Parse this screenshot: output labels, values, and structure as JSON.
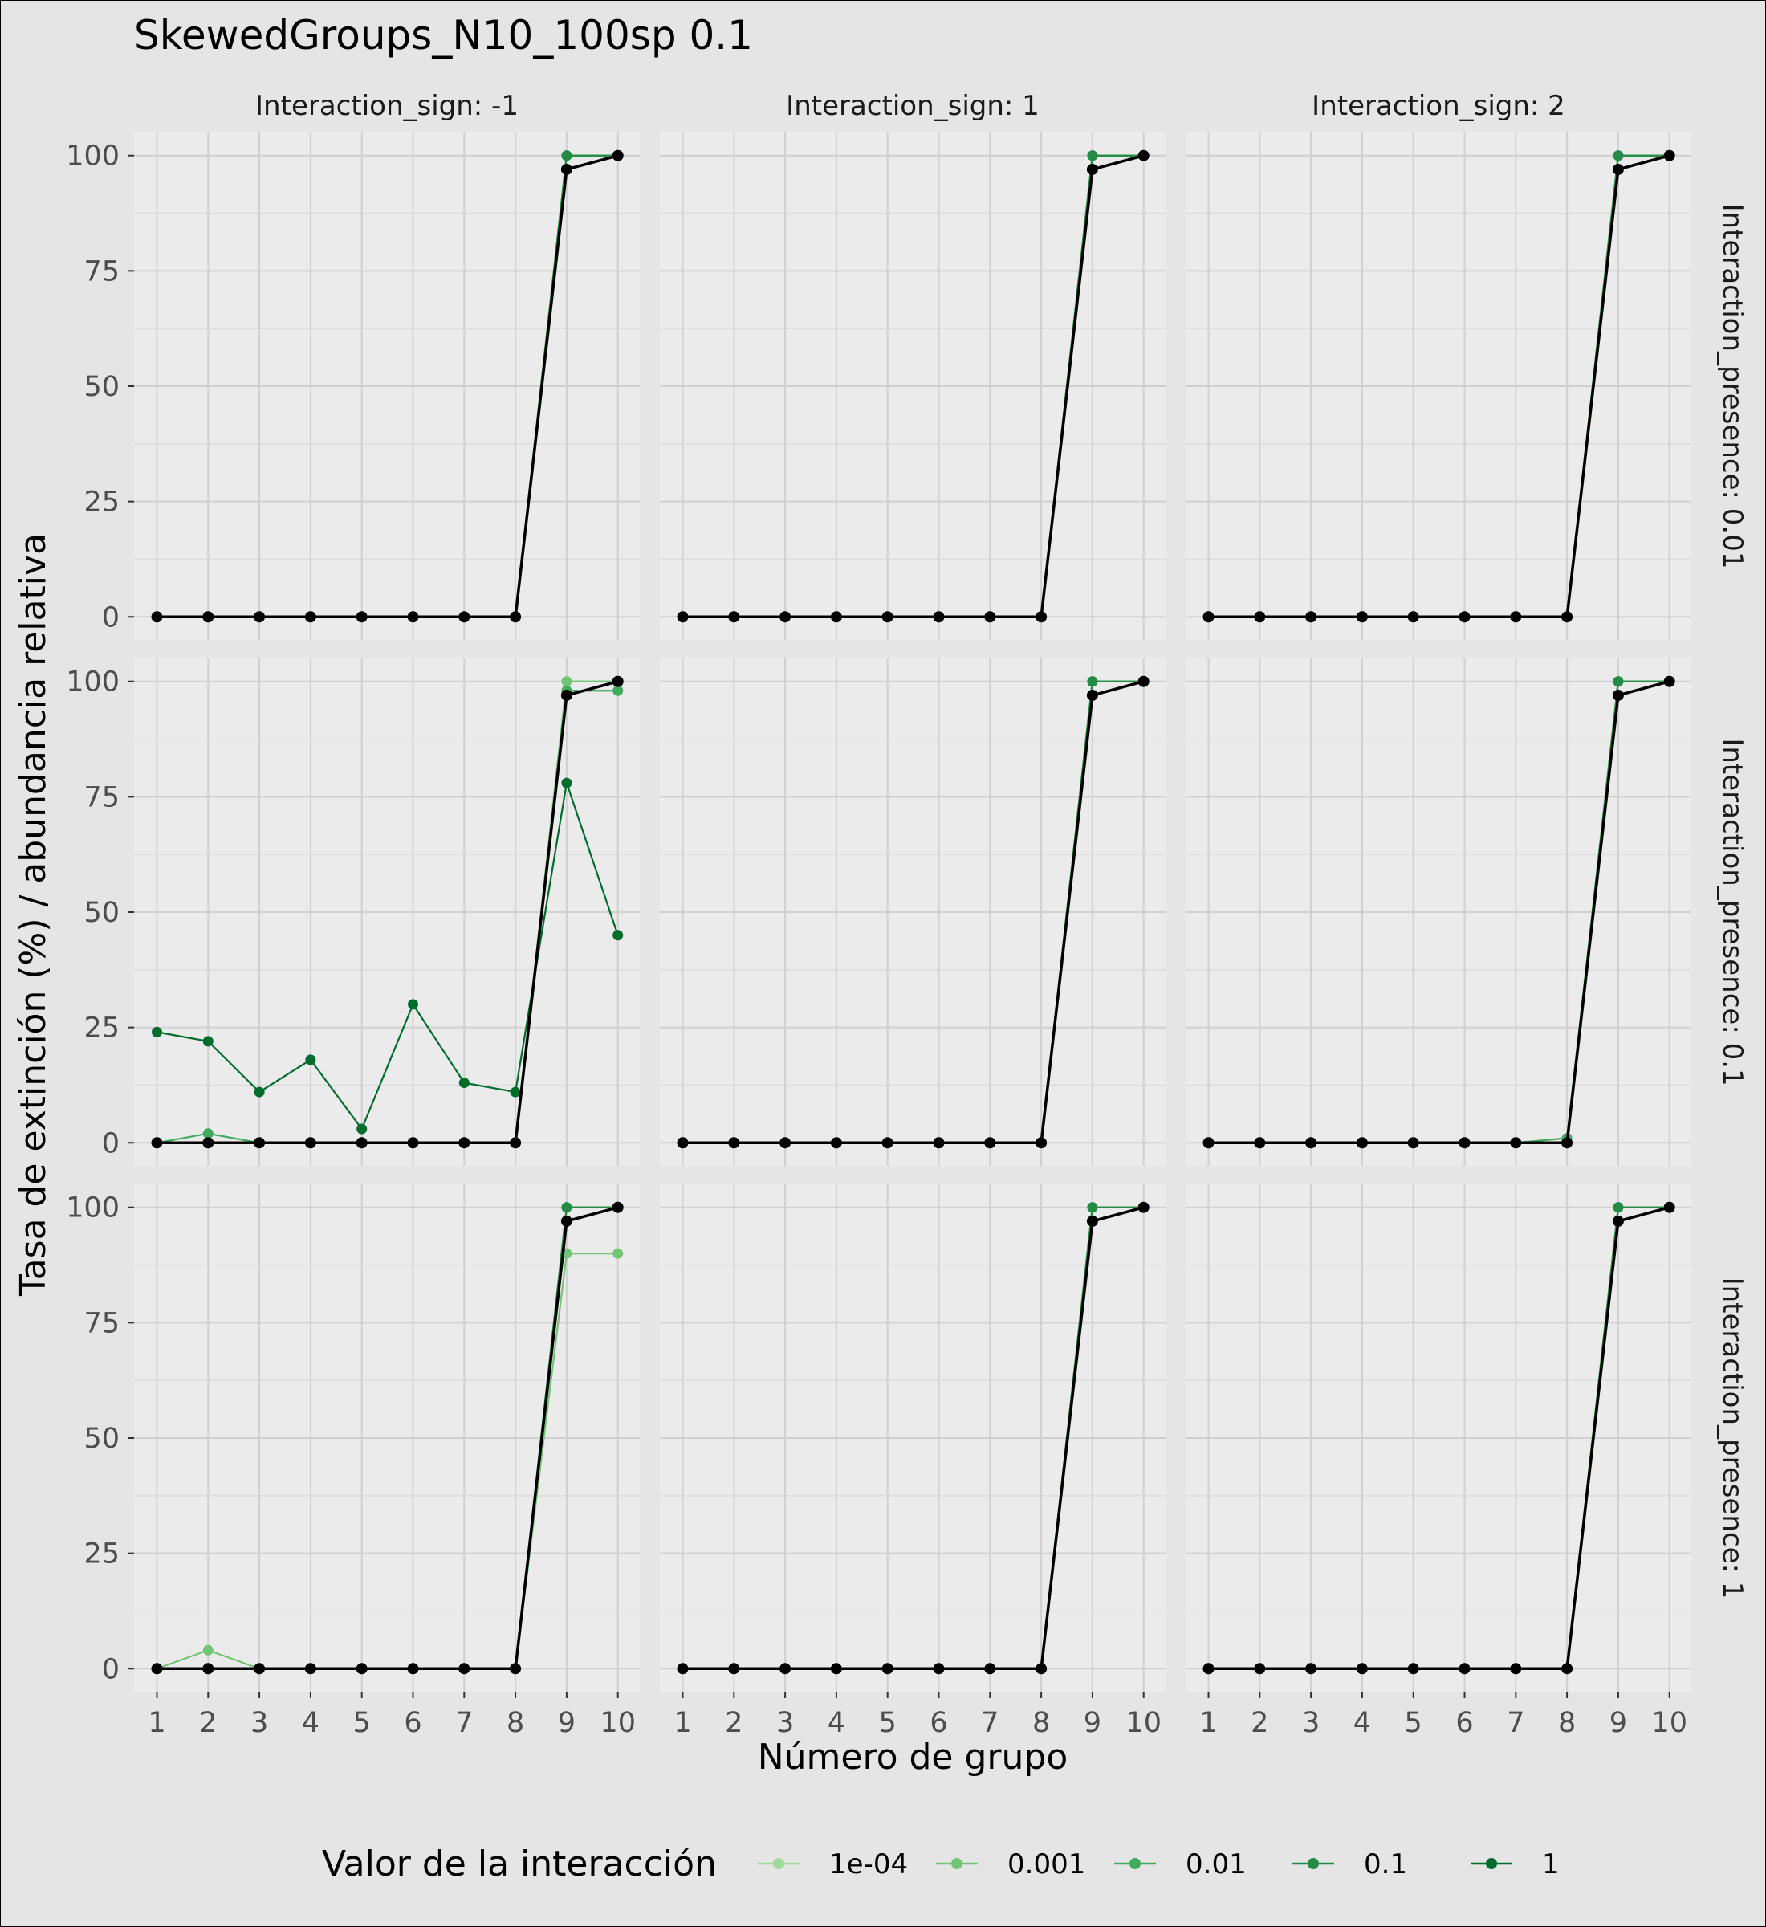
{
  "chart_data": {
    "type": "line",
    "title": "SkewedGroups_N10_100sp 0.1",
    "xlabel": "Número de grupo",
    "ylabel": "Tasa de extinción (%) / abundancia relativa",
    "x": [
      1,
      2,
      3,
      4,
      5,
      6,
      7,
      8,
      9,
      10
    ],
    "x_ticks": [
      "1",
      "2",
      "3",
      "4",
      "5",
      "6",
      "7",
      "8",
      "9",
      "10"
    ],
    "y_ticks": [
      "0",
      "25",
      "50",
      "75",
      "100"
    ],
    "ylim": [
      -5,
      105
    ],
    "facet_cols": [
      "Interaction_sign: -1",
      "Interaction_sign: 1",
      "Interaction_sign: 2"
    ],
    "facet_rows": [
      "Interaction_presence: 0.01",
      "Interaction_presence: 0.1",
      "Interaction_presence: 1"
    ],
    "legend": {
      "title": "Valor de la interacción",
      "entries": [
        "1e-04",
        "0.001",
        "0.01",
        "0.1",
        "1"
      ],
      "colors": [
        "#a1d99b",
        "#74c476",
        "#41ab5d",
        "#238b45",
        "#006d2c"
      ],
      "position": "bottom"
    },
    "grid": true,
    "panels": [
      [
        {
          "series": [
            {
              "name": "1e-04",
              "values": [
                0,
                0,
                0,
                0,
                0,
                0,
                0,
                0,
                100,
                100
              ]
            },
            {
              "name": "0.001",
              "values": [
                0,
                0,
                0,
                0,
                0,
                0,
                0,
                0,
                100,
                100
              ]
            },
            {
              "name": "0.01",
              "values": [
                0,
                0,
                0,
                0,
                0,
                0,
                0,
                0,
                100,
                100
              ]
            },
            {
              "name": "0.1",
              "values": [
                0,
                0,
                0,
                0,
                0,
                0,
                0,
                0,
                100,
                100
              ]
            },
            {
              "name": "1",
              "values": [
                0,
                0,
                0,
                0,
                0,
                0,
                0,
                0,
                97,
                100
              ]
            }
          ]
        },
        {
          "series": [
            {
              "name": "1e-04",
              "values": [
                0,
                0,
                0,
                0,
                0,
                0,
                0,
                0,
                100,
                100
              ]
            },
            {
              "name": "0.001",
              "values": [
                0,
                0,
                0,
                0,
                0,
                0,
                0,
                0,
                100,
                100
              ]
            },
            {
              "name": "0.01",
              "values": [
                0,
                0,
                0,
                0,
                0,
                0,
                0,
                0,
                100,
                100
              ]
            },
            {
              "name": "0.1",
              "values": [
                0,
                0,
                0,
                0,
                0,
                0,
                0,
                0,
                100,
                100
              ]
            },
            {
              "name": "1",
              "values": [
                0,
                0,
                0,
                0,
                0,
                0,
                0,
                0,
                97,
                100
              ]
            }
          ]
        },
        {
          "series": [
            {
              "name": "1e-04",
              "values": [
                0,
                0,
                0,
                0,
                0,
                0,
                0,
                0,
                100,
                100
              ]
            },
            {
              "name": "0.001",
              "values": [
                0,
                0,
                0,
                0,
                0,
                0,
                0,
                0,
                100,
                100
              ]
            },
            {
              "name": "0.01",
              "values": [
                0,
                0,
                0,
                0,
                0,
                0,
                0,
                0,
                100,
                100
              ]
            },
            {
              "name": "0.1",
              "values": [
                0,
                0,
                0,
                0,
                0,
                0,
                0,
                0,
                100,
                100
              ]
            },
            {
              "name": "1",
              "values": [
                0,
                0,
                0,
                0,
                0,
                0,
                0,
                0,
                97,
                100
              ]
            }
          ]
        }
      ],
      [
        {
          "series": [
            {
              "name": "1e-04",
              "values": [
                0,
                0,
                0,
                0,
                0,
                0,
                0,
                0,
                100,
                100
              ]
            },
            {
              "name": "0.001",
              "values": [
                0,
                0,
                0,
                0,
                0,
                0,
                0,
                0,
                100,
                100
              ]
            },
            {
              "name": "0.01",
              "values": [
                0,
                2,
                0,
                0,
                0,
                0,
                0,
                0,
                98,
                98
              ]
            },
            {
              "name": "0.1",
              "values": [
                0,
                0,
                0,
                0,
                0,
                0,
                0,
                0,
                97,
                100
              ]
            },
            {
              "name": "1",
              "values": [
                24,
                22,
                11,
                18,
                3,
                30,
                13,
                11,
                78,
                45
              ]
            }
          ]
        },
        {
          "series": [
            {
              "name": "1e-04",
              "values": [
                0,
                0,
                0,
                0,
                0,
                0,
                0,
                0,
                100,
                100
              ]
            },
            {
              "name": "0.001",
              "values": [
                0,
                0,
                0,
                0,
                0,
                0,
                0,
                0,
                100,
                100
              ]
            },
            {
              "name": "0.01",
              "values": [
                0,
                0,
                0,
                0,
                0,
                0,
                0,
                0,
                100,
                100
              ]
            },
            {
              "name": "0.1",
              "values": [
                0,
                0,
                0,
                0,
                0,
                0,
                0,
                0,
                100,
                100
              ]
            },
            {
              "name": "1",
              "values": [
                0,
                0,
                0,
                0,
                0,
                0,
                0,
                0,
                97,
                100
              ]
            }
          ]
        },
        {
          "series": [
            {
              "name": "1e-04",
              "values": [
                0,
                0,
                0,
                0,
                0,
                0,
                0,
                0,
                100,
                100
              ]
            },
            {
              "name": "0.001",
              "values": [
                0,
                0,
                0,
                0,
                0,
                0,
                0,
                0,
                100,
                100
              ]
            },
            {
              "name": "0.01",
              "values": [
                0,
                0,
                0,
                0,
                0,
                0,
                0,
                1,
                100,
                100
              ]
            },
            {
              "name": "0.1",
              "values": [
                0,
                0,
                0,
                0,
                0,
                0,
                0,
                0,
                100,
                100
              ]
            },
            {
              "name": "1",
              "values": [
                0,
                0,
                0,
                0,
                0,
                0,
                0,
                0,
                97,
                100
              ]
            }
          ]
        }
      ],
      [
        {
          "series": [
            {
              "name": "1e-04",
              "values": [
                0,
                0,
                0,
                0,
                0,
                0,
                0,
                0,
                100,
                100
              ]
            },
            {
              "name": "0.001",
              "values": [
                0,
                4,
                0,
                0,
                0,
                0,
                0,
                0,
                90,
                90
              ]
            },
            {
              "name": "0.01",
              "values": [
                0,
                0,
                0,
                0,
                0,
                0,
                0,
                0,
                100,
                100
              ]
            },
            {
              "name": "0.1",
              "values": [
                0,
                0,
                0,
                0,
                0,
                0,
                0,
                0,
                100,
                100
              ]
            },
            {
              "name": "1",
              "values": [
                0,
                0,
                0,
                0,
                0,
                0,
                0,
                0,
                97,
                100
              ]
            }
          ]
        },
        {
          "series": [
            {
              "name": "1e-04",
              "values": [
                0,
                0,
                0,
                0,
                0,
                0,
                0,
                0,
                100,
                100
              ]
            },
            {
              "name": "0.001",
              "values": [
                0,
                0,
                0,
                0,
                0,
                0,
                0,
                0,
                100,
                100
              ]
            },
            {
              "name": "0.01",
              "values": [
                0,
                0,
                0,
                0,
                0,
                0,
                0,
                0,
                100,
                100
              ]
            },
            {
              "name": "0.1",
              "values": [
                0,
                0,
                0,
                0,
                0,
                0,
                0,
                0,
                100,
                100
              ]
            },
            {
              "name": "1",
              "values": [
                0,
                0,
                0,
                0,
                0,
                0,
                0,
                0,
                97,
                100
              ]
            }
          ]
        },
        {
          "series": [
            {
              "name": "1e-04",
              "values": [
                0,
                0,
                0,
                0,
                0,
                0,
                0,
                0,
                100,
                100
              ]
            },
            {
              "name": "0.001",
              "values": [
                0,
                0,
                0,
                0,
                0,
                0,
                0,
                0,
                100,
                100
              ]
            },
            {
              "name": "0.01",
              "values": [
                0,
                0,
                0,
                0,
                0,
                0,
                0,
                0,
                100,
                100
              ]
            },
            {
              "name": "0.1",
              "values": [
                0,
                0,
                0,
                0,
                0,
                0,
                0,
                0,
                100,
                100
              ]
            },
            {
              "name": "1",
              "values": [
                0,
                0,
                0,
                0,
                0,
                0,
                0,
                0,
                97,
                100
              ]
            }
          ]
        }
      ]
    ],
    "reference_series": {
      "name": "1",
      "color": "#000000"
    }
  }
}
